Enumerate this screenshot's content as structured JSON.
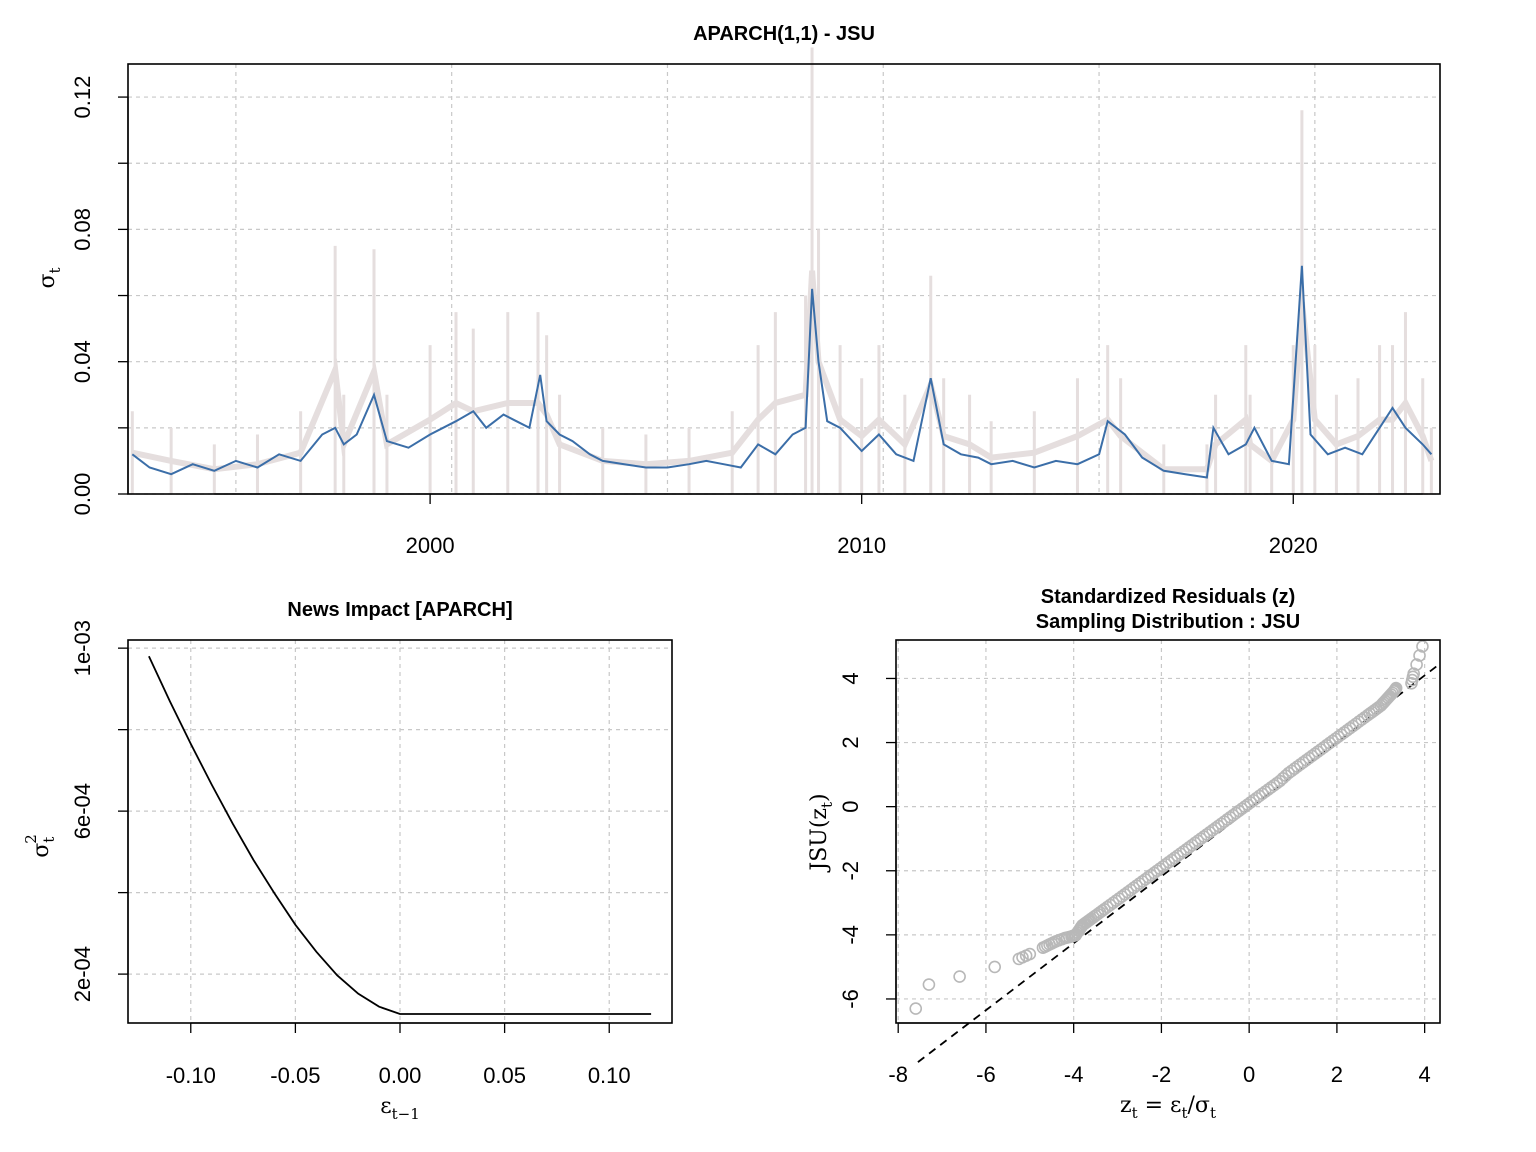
{
  "chart_data": [
    {
      "type": "line",
      "title": "APARCH(1,1) - JSU",
      "xlabel": "",
      "ylabel": "σt",
      "xlim": [
        1993.0,
        2023.4
      ],
      "ylim": [
        0.0,
        0.13
      ],
      "xticks": [
        "2000",
        "2010",
        "2020"
      ],
      "yticks": [
        "0.00",
        "0.04",
        "0.08",
        "0.12"
      ],
      "grid": true,
      "colors": {
        "sigma": "#3b6ea8",
        "abs_returns": "#e5dede"
      },
      "series": [
        {
          "role": "abs_returns",
          "x": [
            1993.1,
            1994.0,
            1995.0,
            1996.0,
            1997.0,
            1997.8,
            1998.0,
            1998.7,
            1999.0,
            2000.0,
            2000.6,
            2001.0,
            2001.8,
            2002.5,
            2002.7,
            2003.0,
            2004.0,
            2005.0,
            2006.0,
            2007.0,
            2007.6,
            2008.0,
            2008.7,
            2008.85,
            2009.0,
            2009.5,
            2010.0,
            2010.4,
            2011.0,
            2011.6,
            2011.9,
            2012.5,
            2013.0,
            2014.0,
            2015.0,
            2015.7,
            2016.0,
            2017.0,
            2018.0,
            2018.2,
            2018.9,
            2019.0,
            2019.5,
            2020.0,
            2020.2,
            2020.5,
            2021.0,
            2021.5,
            2022.0,
            2022.3,
            2022.6,
            2023.0,
            2023.2
          ],
          "y": [
            0.025,
            0.02,
            0.015,
            0.018,
            0.025,
            0.075,
            0.03,
            0.074,
            0.03,
            0.045,
            0.055,
            0.05,
            0.055,
            0.055,
            0.048,
            0.03,
            0.02,
            0.018,
            0.02,
            0.025,
            0.045,
            0.055,
            0.06,
            0.135,
            0.08,
            0.045,
            0.035,
            0.045,
            0.03,
            0.066,
            0.035,
            0.03,
            0.022,
            0.025,
            0.035,
            0.045,
            0.035,
            0.015,
            0.015,
            0.03,
            0.045,
            0.03,
            0.02,
            0.045,
            0.116,
            0.045,
            0.03,
            0.035,
            0.045,
            0.045,
            0.055,
            0.035,
            0.02
          ]
        },
        {
          "role": "sigma",
          "x": [
            1993.1,
            1993.5,
            1994.0,
            1994.5,
            1995.0,
            1995.5,
            1996.0,
            1996.5,
            1997.0,
            1997.5,
            1997.8,
            1998.0,
            1998.3,
            1998.7,
            1999.0,
            1999.5,
            2000.0,
            2000.3,
            2000.6,
            2001.0,
            2001.3,
            2001.7,
            2002.0,
            2002.3,
            2002.55,
            2002.7,
            2003.0,
            2003.3,
            2003.7,
            2004.0,
            2004.5,
            2005.0,
            2005.5,
            2006.0,
            2006.4,
            2006.8,
            2007.2,
            2007.6,
            2008.0,
            2008.4,
            2008.7,
            2008.85,
            2009.0,
            2009.2,
            2009.5,
            2010.0,
            2010.4,
            2010.8,
            2011.2,
            2011.6,
            2011.9,
            2012.3,
            2012.7,
            2013.0,
            2013.5,
            2014.0,
            2014.5,
            2015.0,
            2015.5,
            2015.7,
            2016.1,
            2016.5,
            2017.0,
            2017.5,
            2018.0,
            2018.15,
            2018.5,
            2018.9,
            2019.1,
            2019.5,
            2019.9,
            2020.2,
            2020.4,
            2020.8,
            2021.2,
            2021.6,
            2022.0,
            2022.3,
            2022.6,
            2023.0,
            2023.2
          ],
          "y": [
            0.012,
            0.008,
            0.006,
            0.009,
            0.007,
            0.01,
            0.008,
            0.012,
            0.01,
            0.018,
            0.02,
            0.015,
            0.018,
            0.03,
            0.016,
            0.014,
            0.018,
            0.02,
            0.022,
            0.025,
            0.02,
            0.024,
            0.022,
            0.02,
            0.036,
            0.022,
            0.018,
            0.016,
            0.012,
            0.01,
            0.009,
            0.008,
            0.008,
            0.009,
            0.01,
            0.009,
            0.008,
            0.015,
            0.012,
            0.018,
            0.02,
            0.062,
            0.04,
            0.022,
            0.02,
            0.013,
            0.018,
            0.012,
            0.01,
            0.035,
            0.015,
            0.012,
            0.011,
            0.009,
            0.01,
            0.008,
            0.01,
            0.009,
            0.012,
            0.022,
            0.018,
            0.011,
            0.007,
            0.006,
            0.005,
            0.02,
            0.012,
            0.015,
            0.02,
            0.01,
            0.009,
            0.069,
            0.018,
            0.012,
            0.014,
            0.012,
            0.02,
            0.026,
            0.02,
            0.015,
            0.012
          ]
        }
      ]
    },
    {
      "type": "line",
      "title": "News Impact [APARCH]",
      "xlabel": "εt−1",
      "ylabel": "σt2",
      "xlim": [
        -0.13,
        0.13
      ],
      "ylim": [
        8e-05,
        0.00102
      ],
      "xticks": [
        "-0.10",
        "-0.05",
        "0.00",
        "0.05",
        "0.10"
      ],
      "yticks": [
        "2e-04",
        "6e-04",
        "1e-03"
      ],
      "grid": true,
      "series": [
        {
          "x": [
            -0.12,
            -0.11,
            -0.1,
            -0.09,
            -0.08,
            -0.07,
            -0.06,
            -0.05,
            -0.04,
            -0.03,
            -0.02,
            -0.01,
            0.0,
            0.12
          ],
          "y": [
            0.00098,
            0.00087,
            0.000765,
            0.000665,
            0.00057,
            0.00048,
            0.000398,
            0.000321,
            0.000255,
            0.000197,
            0.000152,
            0.00012,
            0.000102,
            0.000102
          ]
        }
      ]
    },
    {
      "type": "scatter",
      "title": "Standardized Residuals (z)",
      "subtitle": "Sampling Distribution : JSU",
      "xlabel": "zt = εt/σt",
      "ylabel": "JSU(zt)",
      "xlim": [
        -8.05,
        4.35
      ],
      "ylim": [
        -6.75,
        5.2
      ],
      "xticks": [
        "-8",
        "-6",
        "-4",
        "-2",
        "0",
        "2",
        "4"
      ],
      "yticks": [
        "-6",
        "-4",
        "-2",
        "0",
        "2",
        "4"
      ],
      "grid": true,
      "reference_line": {
        "slope": 1.0,
        "intercept": 0.33
      },
      "points": {
        "x": [
          -7.6,
          -7.3,
          -6.6,
          -5.8,
          -5.25,
          -5.0,
          -4.7,
          -4.55,
          -4.4,
          -4.2,
          -4.05,
          -3.95,
          -3.85,
          -3.8,
          -3.7,
          -3.6,
          -3.45,
          -3.3,
          -3.1,
          -2.9,
          -2.7,
          -2.5,
          -2.3,
          -2.1,
          -1.9,
          -1.7,
          -1.5,
          -1.3,
          -1.1,
          -0.9,
          -0.7,
          -0.5,
          -0.3,
          -0.1,
          0.1,
          0.3,
          0.5,
          0.7,
          0.9,
          1.1,
          1.3,
          1.5,
          1.7,
          1.9,
          2.1,
          2.3,
          2.5,
          2.7,
          2.85,
          3.0,
          3.1,
          3.2,
          3.3,
          3.35,
          3.7,
          3.75,
          3.95
        ],
        "y": [
          -6.3,
          -5.55,
          -5.3,
          -5.0,
          -4.75,
          -4.6,
          -4.4,
          -4.3,
          -4.2,
          -4.1,
          -4.05,
          -4.0,
          -3.8,
          -3.7,
          -3.6,
          -3.5,
          -3.35,
          -3.2,
          -3.0,
          -2.8,
          -2.6,
          -2.4,
          -2.2,
          -2.0,
          -1.8,
          -1.6,
          -1.4,
          -1.2,
          -1.0,
          -0.8,
          -0.6,
          -0.4,
          -0.2,
          0.0,
          0.2,
          0.4,
          0.6,
          0.8,
          1.05,
          1.25,
          1.45,
          1.65,
          1.85,
          2.05,
          2.25,
          2.45,
          2.65,
          2.85,
          3.0,
          3.15,
          3.3,
          3.45,
          3.6,
          3.7,
          3.85,
          4.15,
          5.0
        ]
      }
    }
  ]
}
